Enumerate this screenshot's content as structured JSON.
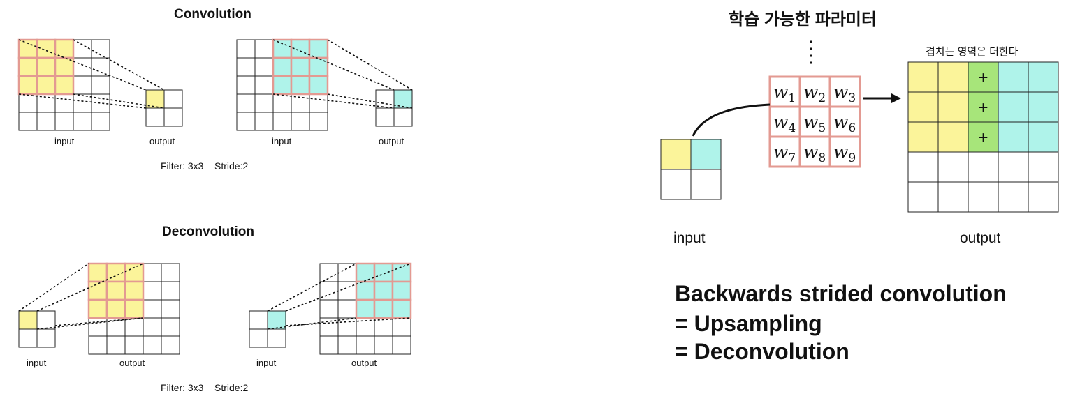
{
  "convolution": {
    "title": "Convolution",
    "input_label": "input",
    "output_label": "output",
    "params": "Filter: 3x3    Stride:2"
  },
  "deconvolution": {
    "title": "Deconvolution",
    "input_label": "input",
    "output_label": "output",
    "params": "Filter: 3x3    Stride:2"
  },
  "right": {
    "params_title": "학습 가능한 파라미터",
    "overlap_note": "겹치는 영역은 더한다",
    "input_label": "input",
    "output_label": "output",
    "weights": [
      "w1",
      "w2",
      "w3",
      "w4",
      "w5",
      "w6",
      "w7",
      "w8",
      "w9"
    ],
    "plus_sign": "+",
    "summary": [
      "Backwards strided convolution",
      "= Upsampling",
      "= Deconvolution"
    ]
  },
  "colors": {
    "yellow": "#fbf49a",
    "cyan": "#aff3ea",
    "green": "#a7e57a",
    "filter_border": "#e39a92",
    "grid": "#222222"
  }
}
